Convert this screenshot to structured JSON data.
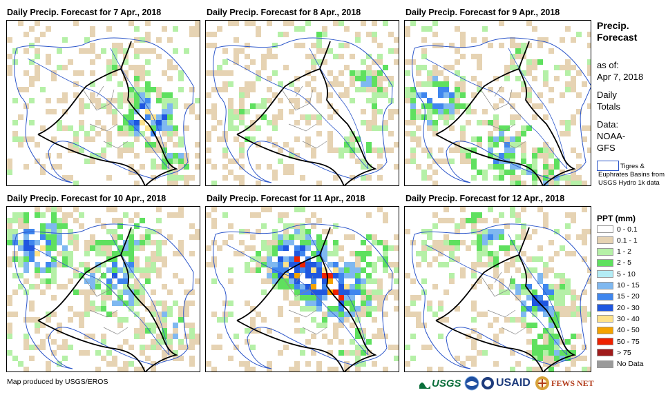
{
  "panels": [
    {
      "title": "Daily Precip. Forecast for 7 Apr., 2018"
    },
    {
      "title": "Daily Precip. Forecast for 8 Apr., 2018"
    },
    {
      "title": "Daily Precip. Forecast for 9 Apr., 2018"
    },
    {
      "title": "Daily Precip. Forecast for 10 Apr., 2018"
    },
    {
      "title": "Daily Precip. Forecast for 11 Apr., 2018"
    },
    {
      "title": "Daily Precip. Forecast for 12 Apr., 2018"
    }
  ],
  "sidebar": {
    "title_line1": "Precip.",
    "title_line2": "Forecast",
    "asof_label": "as of:",
    "asof_date": "Apr 7, 2018",
    "totals_line1": "Daily",
    "totals_line2": "Totals",
    "data_label": "Data:",
    "data_line1": "NOAA-",
    "data_line2": "GFS",
    "basin_note": "Tigres & Euphrates Basins from USGS Hydro 1k data"
  },
  "legend": {
    "title": "PPT (mm)",
    "items": [
      {
        "label": "0 - 0.1",
        "color": "#ffffff"
      },
      {
        "label": "0.1 - 1",
        "color": "#e6d3b3"
      },
      {
        "label": "1 - 2",
        "color": "#b5f0a7"
      },
      {
        "label": "2 - 5",
        "color": "#5fe05f"
      },
      {
        "label": "5 - 10",
        "color": "#b3ecf5"
      },
      {
        "label": "10 - 15",
        "color": "#7fb8f0"
      },
      {
        "label": "15 - 20",
        "color": "#3f86ee"
      },
      {
        "label": "20 - 30",
        "color": "#1f57e0"
      },
      {
        "label": "30 - 40",
        "color": "#fde28a"
      },
      {
        "label": "40 - 50",
        "color": "#f5a300"
      },
      {
        "label": "50 - 75",
        "color": "#ee2200"
      },
      {
        "label": "> 75",
        "color": "#a01b1b"
      },
      {
        "label": "No Data",
        "color": "#9a9a9a"
      }
    ]
  },
  "footer": {
    "credit": "Map produced by USGS/EROS",
    "logo_usgs": "USGS",
    "logo_usaid": "USAID",
    "logo_fews": "FEWS NET"
  }
}
